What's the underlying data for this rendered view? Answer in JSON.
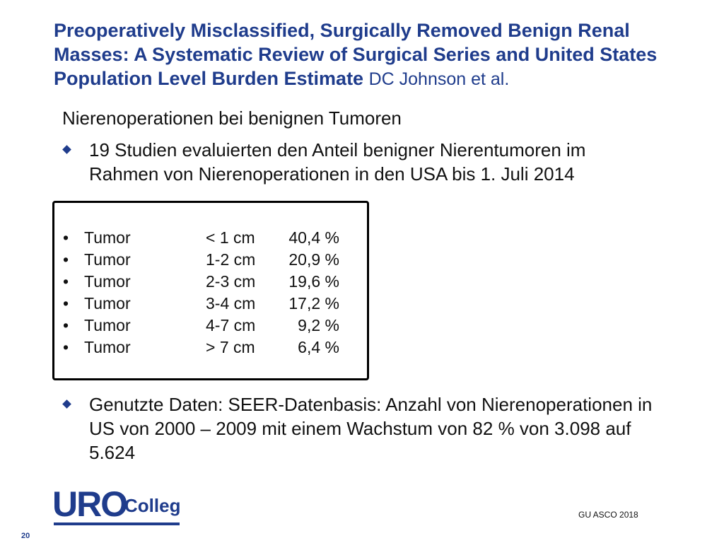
{
  "header": {
    "title": "Preoperatively Misclassified, Surgically Removed Benign Renal Masses: A Systematic Review of Surgical Series and United States Population Level Burden Estimate",
    "author": "DC Johnson et al."
  },
  "subtitle": "Nierenoperationen bei benignen Tumoren",
  "bullets": [
    "19 Studien evaluierten den Anteil benigner Nierentumoren im Rahmen von Nierenoperationen in den USA bis 1. Juli 2014",
    "Genutzte Daten: SEER-Datenbasis: Anzahl von Nierenoperationen in US von 2000 – 2009 mit einem Wachstum von 82 % von 3.098 auf 5.624"
  ],
  "table": {
    "rows": [
      [
        "Tumor",
        "< 1 cm",
        "40,4 %"
      ],
      [
        "Tumor",
        "1-2 cm",
        "20,9 %"
      ],
      [
        "Tumor",
        "2-3 cm",
        "19,6 %"
      ],
      [
        "Tumor",
        "3-4 cm",
        "17,2 %"
      ],
      [
        "Tumor",
        "4-7 cm",
        "9,2 %"
      ],
      [
        "Tumor",
        "> 7 cm",
        "6,4 %"
      ]
    ]
  },
  "logo": {
    "main": "URO",
    "sub": "Colleg"
  },
  "footer": {
    "source": "GU ASCO 2018",
    "page": "20"
  }
}
